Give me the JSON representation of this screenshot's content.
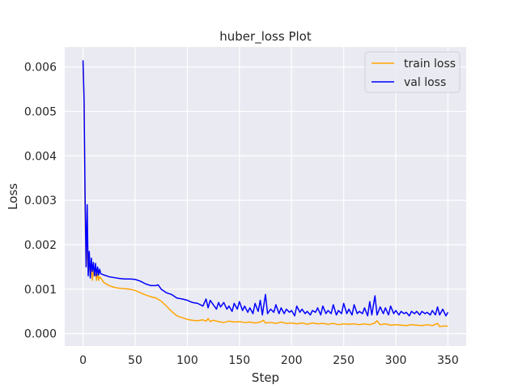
{
  "chart_data": {
    "type": "line",
    "title": "huber_loss Plot",
    "xlabel": "Step",
    "ylabel": "Loss",
    "xlim": [
      -17.5,
      367.5
    ],
    "ylim": [
      -0.00028,
      0.00645
    ],
    "xticks": [
      0,
      50,
      100,
      150,
      200,
      250,
      300,
      350
    ],
    "yticks": [
      0.0,
      0.001,
      0.002,
      0.003,
      0.004,
      0.005,
      0.006
    ],
    "ytick_labels": [
      "0.000",
      "0.001",
      "0.002",
      "0.003",
      "0.004",
      "0.005",
      "0.006"
    ],
    "grid": true,
    "legend_position": "top-right",
    "series": [
      {
        "name": "train loss",
        "color": "#FFA500",
        "points": [
          [
            0,
            0.0061
          ],
          [
            1,
            0.0052
          ],
          [
            2,
            0.0028
          ],
          [
            3,
            0.0015
          ],
          [
            4,
            0.002
          ],
          [
            5,
            0.0014
          ],
          [
            6,
            0.0016
          ],
          [
            7,
            0.0013
          ],
          [
            8,
            0.00145
          ],
          [
            9,
            0.0012
          ],
          [
            10,
            0.00142
          ],
          [
            11,
            0.0013
          ],
          [
            12,
            0.00135
          ],
          [
            13,
            0.0012
          ],
          [
            14,
            0.00138
          ],
          [
            15,
            0.0012
          ],
          [
            16,
            0.00128
          ],
          [
            18,
            0.00122
          ],
          [
            20,
            0.00115
          ],
          [
            25,
            0.00108
          ],
          [
            30,
            0.00104
          ],
          [
            35,
            0.00102
          ],
          [
            40,
            0.00101
          ],
          [
            45,
            0.001
          ],
          [
            50,
            0.00097
          ],
          [
            55,
            0.00092
          ],
          [
            60,
            0.00087
          ],
          [
            65,
            0.00083
          ],
          [
            70,
            0.0008
          ],
          [
            75,
            0.00073
          ],
          [
            80,
            0.00062
          ],
          [
            85,
            0.0005
          ],
          [
            90,
            0.0004
          ],
          [
            95,
            0.00036
          ],
          [
            100,
            0.00032
          ],
          [
            105,
            0.0003
          ],
          [
            110,
            0.00029
          ],
          [
            115,
            0.00031
          ],
          [
            118,
            0.00028
          ],
          [
            120,
            0.00034
          ],
          [
            122,
            0.00027
          ],
          [
            125,
            0.0003
          ],
          [
            130,
            0.00027
          ],
          [
            135,
            0.00025
          ],
          [
            140,
            0.00028
          ],
          [
            145,
            0.00026
          ],
          [
            150,
            0.00027
          ],
          [
            155,
            0.00025
          ],
          [
            160,
            0.00026
          ],
          [
            165,
            0.00024
          ],
          [
            170,
            0.00026
          ],
          [
            173,
            0.0003
          ],
          [
            175,
            0.00024
          ],
          [
            180,
            0.00025
          ],
          [
            185,
            0.00023
          ],
          [
            190,
            0.00026
          ],
          [
            195,
            0.00023
          ],
          [
            200,
            0.00024
          ],
          [
            205,
            0.00022
          ],
          [
            210,
            0.00024
          ],
          [
            215,
            0.00021
          ],
          [
            220,
            0.00024
          ],
          [
            225,
            0.00022
          ],
          [
            230,
            0.00023
          ],
          [
            235,
            0.00021
          ],
          [
            240,
            0.00023
          ],
          [
            245,
            0.0002
          ],
          [
            250,
            0.00022
          ],
          [
            255,
            0.00021
          ],
          [
            260,
            0.00022
          ],
          [
            265,
            0.0002
          ],
          [
            270,
            0.00022
          ],
          [
            275,
            0.0002
          ],
          [
            280,
            0.00024
          ],
          [
            282,
            0.00029
          ],
          [
            285,
            0.0002
          ],
          [
            290,
            0.00022
          ],
          [
            295,
            0.00019
          ],
          [
            300,
            0.0002
          ],
          [
            305,
            0.00019
          ],
          [
            310,
            0.00018
          ],
          [
            315,
            0.0002
          ],
          [
            320,
            0.00019
          ],
          [
            325,
            0.00018
          ],
          [
            330,
            0.0002
          ],
          [
            335,
            0.00018
          ],
          [
            340,
            0.00023
          ],
          [
            342,
            0.00016
          ],
          [
            345,
            0.00017
          ],
          [
            350,
            0.00017
          ]
        ]
      },
      {
        "name": "val loss",
        "color": "#0000FF",
        "points": [
          [
            0,
            0.00615
          ],
          [
            1,
            0.0053
          ],
          [
            2,
            0.0031
          ],
          [
            3,
            0.0015
          ],
          [
            4,
            0.0029
          ],
          [
            5,
            0.0013
          ],
          [
            6,
            0.00185
          ],
          [
            7,
            0.00125
          ],
          [
            8,
            0.0017
          ],
          [
            9,
            0.0014
          ],
          [
            10,
            0.0016
          ],
          [
            11,
            0.0013
          ],
          [
            12,
            0.00158
          ],
          [
            13,
            0.0013
          ],
          [
            14,
            0.0015
          ],
          [
            15,
            0.00132
          ],
          [
            16,
            0.00145
          ],
          [
            17,
            0.00135
          ],
          [
            20,
            0.00132
          ],
          [
            25,
            0.00128
          ],
          [
            30,
            0.00126
          ],
          [
            35,
            0.00124
          ],
          [
            40,
            0.00123
          ],
          [
            45,
            0.00123
          ],
          [
            50,
            0.00122
          ],
          [
            55,
            0.00118
          ],
          [
            60,
            0.00112
          ],
          [
            65,
            0.00108
          ],
          [
            70,
            0.00108
          ],
          [
            72,
            0.0011
          ],
          [
            75,
            0.001
          ],
          [
            80,
            0.00092
          ],
          [
            85,
            0.00088
          ],
          [
            90,
            0.0008
          ],
          [
            95,
            0.00078
          ],
          [
            100,
            0.00075
          ],
          [
            105,
            0.0007
          ],
          [
            110,
            0.00068
          ],
          [
            115,
            0.00062
          ],
          [
            118,
            0.00078
          ],
          [
            120,
            0.00058
          ],
          [
            122,
            0.00075
          ],
          [
            125,
            0.00065
          ],
          [
            128,
            0.00055
          ],
          [
            130,
            0.0007
          ],
          [
            132,
            0.0006
          ],
          [
            135,
            0.0007
          ],
          [
            138,
            0.00055
          ],
          [
            140,
            0.00062
          ],
          [
            143,
            0.0005
          ],
          [
            145,
            0.00068
          ],
          [
            148,
            0.00055
          ],
          [
            150,
            0.00072
          ],
          [
            153,
            0.00052
          ],
          [
            155,
            0.00062
          ],
          [
            158,
            0.00048
          ],
          [
            160,
            0.00058
          ],
          [
            163,
            0.00045
          ],
          [
            165,
            0.00068
          ],
          [
            168,
            0.0005
          ],
          [
            170,
            0.00075
          ],
          [
            172,
            0.00042
          ],
          [
            175,
            0.00088
          ],
          [
            177,
            0.00045
          ],
          [
            180,
            0.00055
          ],
          [
            183,
            0.00048
          ],
          [
            185,
            0.00065
          ],
          [
            188,
            0.00045
          ],
          [
            190,
            0.00058
          ],
          [
            193,
            0.00045
          ],
          [
            195,
            0.00055
          ],
          [
            198,
            0.00048
          ],
          [
            200,
            0.00052
          ],
          [
            203,
            0.0004
          ],
          [
            205,
            0.00062
          ],
          [
            208,
            0.00048
          ],
          [
            210,
            0.00055
          ],
          [
            213,
            0.00045
          ],
          [
            215,
            0.0005
          ],
          [
            218,
            0.00042
          ],
          [
            220,
            0.00052
          ],
          [
            223,
            0.00048
          ],
          [
            225,
            0.00058
          ],
          [
            228,
            0.00042
          ],
          [
            230,
            0.00062
          ],
          [
            233,
            0.00045
          ],
          [
            235,
            0.00052
          ],
          [
            238,
            0.00045
          ],
          [
            240,
            0.00065
          ],
          [
            243,
            0.00042
          ],
          [
            245,
            0.00052
          ],
          [
            248,
            0.00045
          ],
          [
            250,
            0.00068
          ],
          [
            253,
            0.00045
          ],
          [
            255,
            0.00055
          ],
          [
            258,
            0.00042
          ],
          [
            260,
            0.00065
          ],
          [
            263,
            0.00045
          ],
          [
            265,
            0.0005
          ],
          [
            268,
            0.00045
          ],
          [
            270,
            0.00058
          ],
          [
            273,
            0.0004
          ],
          [
            275,
            0.00072
          ],
          [
            277,
            0.00042
          ],
          [
            280,
            0.00085
          ],
          [
            282,
            0.00042
          ],
          [
            285,
            0.0006
          ],
          [
            288,
            0.00045
          ],
          [
            290,
            0.00058
          ],
          [
            293,
            0.00042
          ],
          [
            295,
            0.00062
          ],
          [
            298,
            0.00045
          ],
          [
            300,
            0.00052
          ],
          [
            303,
            0.00042
          ],
          [
            305,
            0.0005
          ],
          [
            308,
            0.00045
          ],
          [
            310,
            0.00048
          ],
          [
            313,
            0.0004
          ],
          [
            315,
            0.0005
          ],
          [
            318,
            0.00045
          ],
          [
            320,
            0.0005
          ],
          [
            323,
            0.00042
          ],
          [
            325,
            0.0005
          ],
          [
            328,
            0.00045
          ],
          [
            330,
            0.00048
          ],
          [
            333,
            0.00042
          ],
          [
            335,
            0.00052
          ],
          [
            338,
            0.00042
          ],
          [
            340,
            0.0006
          ],
          [
            342,
            0.00042
          ],
          [
            345,
            0.00055
          ],
          [
            348,
            0.0004
          ],
          [
            350,
            0.00048
          ]
        ]
      }
    ]
  }
}
